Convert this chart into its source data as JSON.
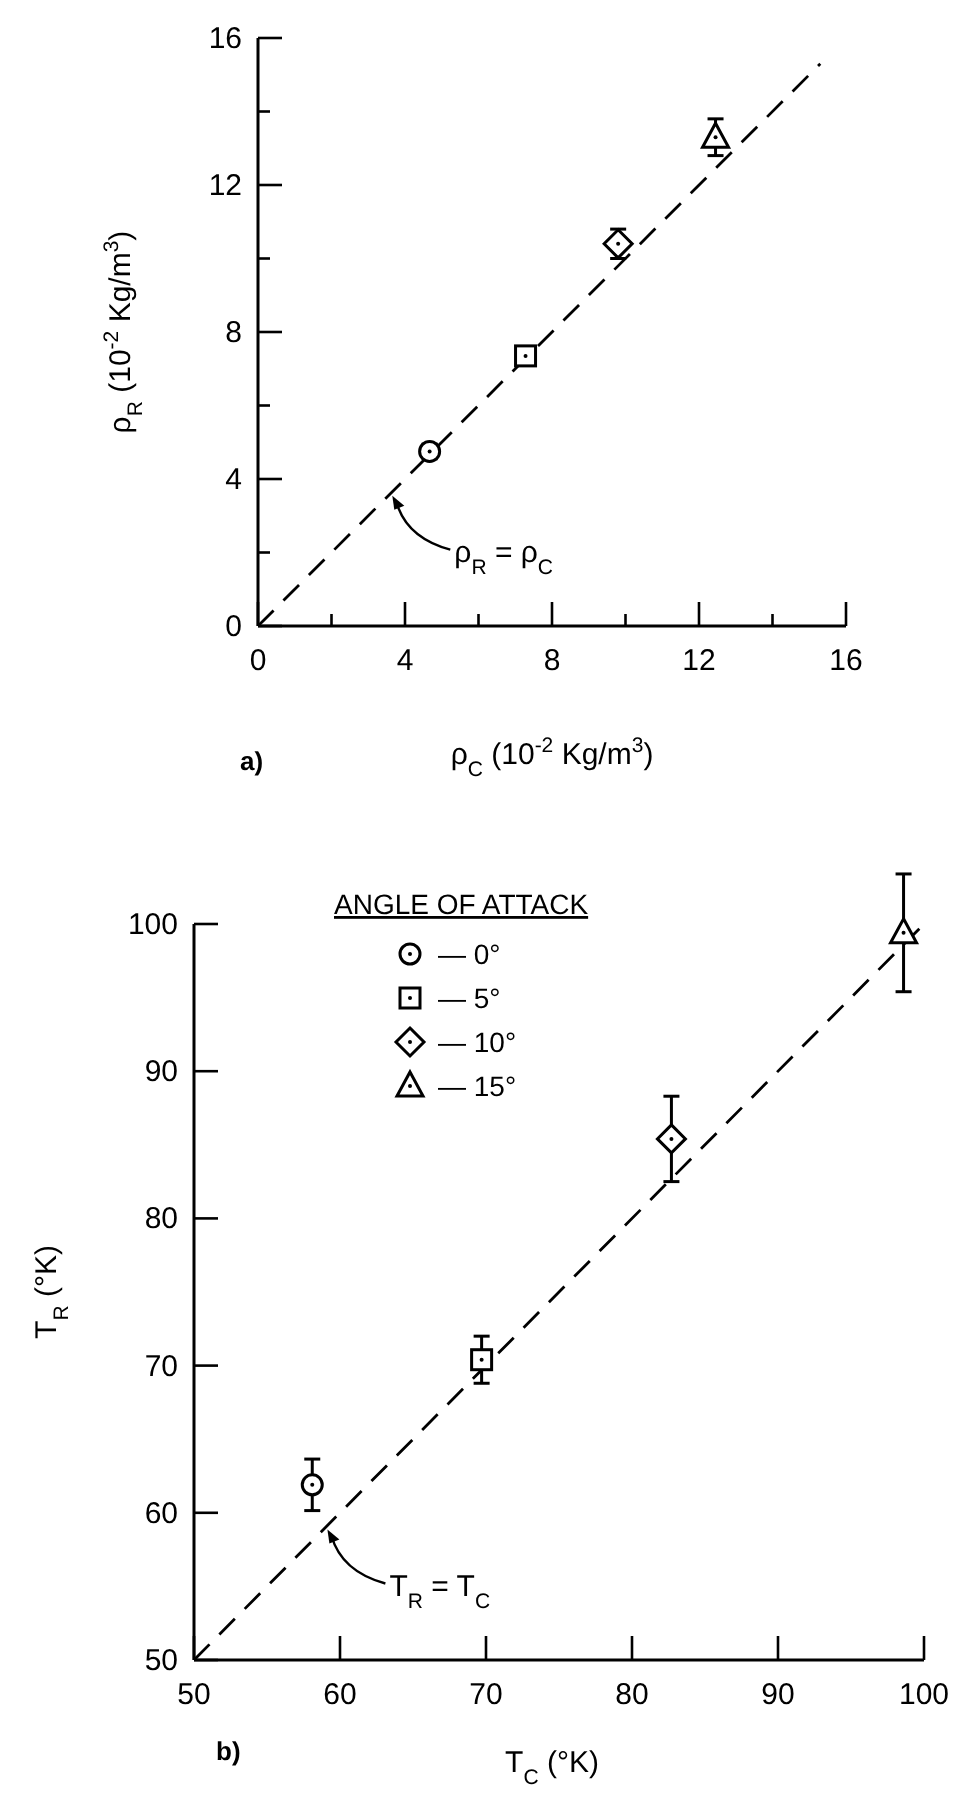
{
  "chart_data": [
    {
      "type": "scatter",
      "xlabel": "ρ$_{C}$ (10$^{-2}$ Kg/m$^{3}$)",
      "ylabel": "ρ$_{R}$ (10$^{-2}$ Kg/m$^{3}$)",
      "xlim": [
        0,
        16
      ],
      "ylim": [
        0,
        16
      ],
      "xticks": [
        0,
        {
          "value": 2,
          "label": null
        },
        4,
        {
          "value": 6,
          "label": null
        },
        8,
        {
          "value": 10,
          "label": null
        },
        12,
        {
          "value": 14,
          "label": null
        },
        16
      ],
      "yticks": [
        0,
        {
          "value": 2,
          "label": null
        },
        4,
        {
          "value": 6,
          "label": null
        },
        8,
        {
          "value": 10,
          "label": null
        },
        12,
        {
          "value": 14,
          "label": null
        },
        16
      ],
      "series": [
        {
          "type": "line",
          "x": [
            0,
            15.3
          ],
          "values": [
            0,
            15.3
          ],
          "color": "#000000",
          "line_style": "dashed",
          "marker": "none"
        },
        {
          "x": [
            4.67
          ],
          "values": [
            4.75
          ],
          "errors": [
            0.2
          ],
          "color": "#000000",
          "marker": "circle"
        },
        {
          "x": [
            7.28
          ],
          "values": [
            7.35
          ],
          "errors": [
            0.2
          ],
          "color": "#000000",
          "marker": "square"
        },
        {
          "x": [
            9.8
          ],
          "values": [
            10.4
          ],
          "errors": [
            0.4
          ],
          "color": "#000000",
          "marker": "diamond"
        },
        {
          "x": [
            12.45
          ],
          "values": [
            13.3
          ],
          "errors": [
            0.5
          ],
          "color": "#000000",
          "marker": "triangle"
        }
      ],
      "annotations": [
        {
          "text": "ρ$_{R}$ = ρ$_{C}$",
          "x": 3.6,
          "y": 3.6
        },
        "a)"
      ]
    },
    {
      "type": "scatter",
      "xlabel": "T$_{C}$ (°K)",
      "ylabel": "T$_{R}$ (°K)",
      "xlim": [
        50,
        100
      ],
      "ylim": [
        50,
        100
      ],
      "xticks": [
        50,
        60,
        70,
        80,
        90,
        100
      ],
      "yticks": [
        50,
        60,
        70,
        80,
        90,
        100
      ],
      "legend": "top left",
      "legend_title": "ANGLE OF ATTACK",
      "series": [
        {
          "type": "line",
          "x": [
            50,
            100
          ],
          "values": [
            50,
            100
          ],
          "color": "#000000",
          "line_style": "dashed",
          "marker": "none"
        },
        {
          "name": "— 0°",
          "x": [
            58.1
          ],
          "values": [
            61.9
          ],
          "errors": [
            1.75
          ],
          "color": "#000000",
          "marker": "circle"
        },
        {
          "name": "— 5°",
          "x": [
            69.7
          ],
          "values": [
            70.4
          ],
          "errors": [
            1.6
          ],
          "color": "#000000",
          "marker": "square"
        },
        {
          "name": "— 10°",
          "x": [
            82.7
          ],
          "values": [
            85.4
          ],
          "errors": [
            2.9
          ],
          "color": "#000000",
          "marker": "diamond"
        },
        {
          "name": "— 15°",
          "x": [
            98.6
          ],
          "values": [
            99.4
          ],
          "errors": [
            4
          ],
          "color": "#000000",
          "marker": "triangle"
        }
      ],
      "annotations": [
        {
          "text": "T$_{R}$ = T$_{C}$",
          "x": 59,
          "y": 59
        },
        "b)"
      ]
    }
  ]
}
